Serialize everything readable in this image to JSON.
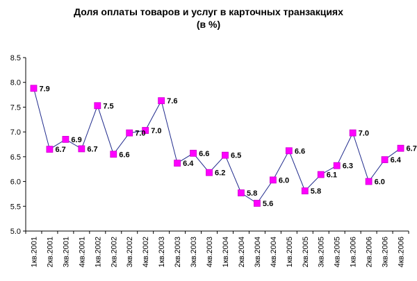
{
  "chart_data": {
    "type": "line",
    "title": "Доля оплаты товаров и услуг в карточных транзакциях",
    "subtitle": "(в %)",
    "xlabel": "",
    "ylabel": "",
    "ylim": [
      5.0,
      8.5
    ],
    "yticks": [
      "5.0",
      "5.5",
      "6.0",
      "6.5",
      "7.0",
      "7.5",
      "8.0",
      "8.5"
    ],
    "grid": false,
    "legend": "none",
    "categories": [
      "1кв.2001",
      "2кв.2001",
      "3кв.2001",
      "4кв.2001",
      "1кв.2002",
      "2кв.2002",
      "3кв.2002",
      "4кв.2002",
      "1кв.2003",
      "2кв.2003",
      "3кв.2003",
      "4кв.2003",
      "1кв.2004",
      "2кв.2004",
      "3кв.2004",
      "4кв.2004",
      "1кв.2005",
      "2кв.2005",
      "3кв.2005",
      "4кв.2005",
      "1кв.2006",
      "2кв.2006",
      "3кв.2006",
      "4кв.2006"
    ],
    "series": [
      {
        "values": [
          7.88,
          6.65,
          6.85,
          6.66,
          7.53,
          6.55,
          6.98,
          7.03,
          7.63,
          6.37,
          6.57,
          6.18,
          6.53,
          5.77,
          5.56,
          6.03,
          6.62,
          5.81,
          6.14,
          6.32,
          6.98,
          6.0,
          6.44,
          6.67
        ],
        "labels": [
          "7.9",
          "6.7",
          "6.9",
          "6.7",
          "7.5",
          "6.6",
          "7.0",
          "7.0",
          "7.6",
          "6.4",
          "6.6",
          "6.2",
          "6.5",
          "5.8",
          "5.6",
          "6.0",
          "6.6",
          "5.8",
          "6.1",
          "6.3",
          "7.0",
          "6.0",
          "6.4",
          "6.7"
        ]
      }
    ],
    "colors": {
      "line": "#1f2a8c",
      "marker": "#ff00ff",
      "marker_edge": "#cc00cc",
      "axis": "#000000"
    }
  }
}
